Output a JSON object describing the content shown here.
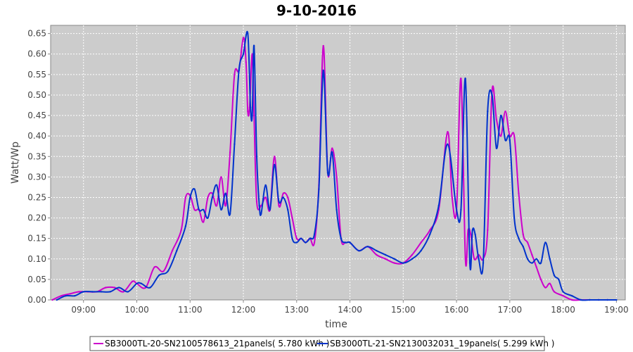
{
  "chart_data": {
    "type": "line",
    "title": "9-10-2016",
    "xlabel": "time",
    "ylabel": "Watt/Wp",
    "xlim": [
      "08:23",
      "19:10"
    ],
    "ylim": [
      0,
      0.67
    ],
    "x_ticks": [
      "09:00",
      "10:00",
      "11:00",
      "12:00",
      "13:00",
      "14:00",
      "15:00",
      "16:00",
      "17:00",
      "18:00",
      "19:00"
    ],
    "y_ticks": [
      "0.00",
      "0.05",
      "0.10",
      "0.15",
      "0.20",
      "0.25",
      "0.30",
      "0.35",
      "0.40",
      "0.45",
      "0.50",
      "0.55",
      "0.60",
      "0.65"
    ],
    "grid": true,
    "legend_position": "bottom",
    "plot_background": "#cccccc",
    "series": [
      {
        "name": "SB3000TL-20-SN2100578613_21panels( 5.780 kWh )",
        "color": "#cc00cc",
        "x": [
          "08:25",
          "08:35",
          "08:45",
          "08:55",
          "09:05",
          "09:15",
          "09:25",
          "09:35",
          "09:45",
          "09:55",
          "10:00",
          "10:10",
          "10:20",
          "10:30",
          "10:40",
          "10:50",
          "10:55",
          "11:00",
          "11:05",
          "11:10",
          "11:15",
          "11:20",
          "11:25",
          "11:30",
          "11:35",
          "11:40",
          "11:45",
          "11:50",
          "11:55",
          "12:00",
          "12:03",
          "12:05",
          "12:07",
          "12:10",
          "12:12",
          "12:15",
          "12:20",
          "12:25",
          "12:30",
          "12:35",
          "12:40",
          "12:45",
          "12:50",
          "12:55",
          "13:00",
          "13:05",
          "13:10",
          "13:15",
          "13:20",
          "13:25",
          "13:30",
          "13:35",
          "13:40",
          "13:45",
          "13:50",
          "13:55",
          "14:00",
          "14:10",
          "14:20",
          "14:30",
          "14:40",
          "14:50",
          "15:00",
          "15:10",
          "15:20",
          "15:30",
          "15:40",
          "15:50",
          "15:55",
          "16:00",
          "16:05",
          "16:10",
          "16:13",
          "16:16",
          "16:20",
          "16:25",
          "16:30",
          "16:35",
          "16:40",
          "16:45",
          "16:50",
          "16:55",
          "17:00",
          "17:05",
          "17:10",
          "17:15",
          "17:20",
          "17:25",
          "17:30",
          "17:35",
          "17:40",
          "17:45",
          "17:50",
          "18:00",
          "18:10",
          "18:20",
          "18:30",
          "18:40",
          "18:50"
        ],
        "y": [
          0.0,
          0.01,
          0.015,
          0.02,
          0.02,
          0.02,
          0.03,
          0.03,
          0.02,
          0.045,
          0.04,
          0.03,
          0.08,
          0.07,
          0.12,
          0.17,
          0.25,
          0.255,
          0.22,
          0.22,
          0.19,
          0.25,
          0.26,
          0.23,
          0.3,
          0.23,
          0.36,
          0.55,
          0.56,
          0.64,
          0.58,
          0.46,
          0.47,
          0.6,
          0.45,
          0.24,
          0.23,
          0.25,
          0.22,
          0.35,
          0.23,
          0.26,
          0.25,
          0.2,
          0.15,
          0.15,
          0.14,
          0.15,
          0.14,
          0.28,
          0.62,
          0.31,
          0.37,
          0.3,
          0.15,
          0.14,
          0.14,
          0.12,
          0.13,
          0.11,
          0.1,
          0.09,
          0.09,
          0.11,
          0.14,
          0.17,
          0.22,
          0.41,
          0.25,
          0.22,
          0.54,
          0.1,
          0.17,
          0.16,
          0.1,
          0.11,
          0.1,
          0.17,
          0.51,
          0.44,
          0.4,
          0.46,
          0.4,
          0.4,
          0.26,
          0.16,
          0.14,
          0.11,
          0.08,
          0.05,
          0.03,
          0.04,
          0.02,
          0.01,
          0.0,
          0.0,
          0.0,
          0.0,
          0.0
        ]
      },
      {
        "name": "SB3000TL-21-SN2130032031_19panels( 5.299 kWh )",
        "color": "#0033cc",
        "x": [
          "08:30",
          "08:40",
          "08:50",
          "09:00",
          "09:10",
          "09:20",
          "09:30",
          "09:40",
          "09:50",
          "10:00",
          "10:05",
          "10:15",
          "10:25",
          "10:35",
          "10:45",
          "10:55",
          "11:00",
          "11:05",
          "11:10",
          "11:15",
          "11:20",
          "11:25",
          "11:30",
          "11:35",
          "11:40",
          "11:45",
          "11:50",
          "11:55",
          "12:00",
          "12:05",
          "12:08",
          "12:10",
          "12:12",
          "12:15",
          "12:18",
          "12:20",
          "12:25",
          "12:30",
          "12:35",
          "12:40",
          "12:45",
          "12:50",
          "12:55",
          "13:00",
          "13:05",
          "13:10",
          "13:15",
          "13:20",
          "13:25",
          "13:30",
          "13:35",
          "13:40",
          "13:45",
          "13:50",
          "13:55",
          "14:00",
          "14:10",
          "14:20",
          "14:30",
          "14:40",
          "14:50",
          "15:00",
          "15:10",
          "15:20",
          "15:30",
          "15:40",
          "15:50",
          "16:00",
          "16:05",
          "16:10",
          "16:15",
          "16:18",
          "16:21",
          "16:25",
          "16:30",
          "16:35",
          "16:40",
          "16:45",
          "16:50",
          "16:55",
          "17:00",
          "17:05",
          "17:10",
          "17:15",
          "17:20",
          "17:25",
          "17:30",
          "17:35",
          "17:40",
          "17:45",
          "17:50",
          "17:55",
          "18:00",
          "18:10",
          "18:20",
          "18:30",
          "18:40",
          "18:50",
          "19:00"
        ],
        "y": [
          0.0,
          0.01,
          0.01,
          0.02,
          0.02,
          0.02,
          0.02,
          0.03,
          0.02,
          0.04,
          0.04,
          0.03,
          0.06,
          0.07,
          0.12,
          0.18,
          0.25,
          0.27,
          0.22,
          0.22,
          0.2,
          0.25,
          0.28,
          0.22,
          0.26,
          0.21,
          0.38,
          0.56,
          0.6,
          0.65,
          0.47,
          0.45,
          0.62,
          0.35,
          0.23,
          0.21,
          0.28,
          0.22,
          0.33,
          0.24,
          0.25,
          0.22,
          0.15,
          0.14,
          0.15,
          0.14,
          0.15,
          0.16,
          0.27,
          0.56,
          0.31,
          0.36,
          0.22,
          0.15,
          0.14,
          0.14,
          0.12,
          0.13,
          0.12,
          0.11,
          0.1,
          0.09,
          0.1,
          0.12,
          0.16,
          0.23,
          0.38,
          0.22,
          0.22,
          0.54,
          0.09,
          0.17,
          0.16,
          0.1,
          0.09,
          0.46,
          0.5,
          0.37,
          0.45,
          0.39,
          0.39,
          0.2,
          0.15,
          0.13,
          0.1,
          0.09,
          0.1,
          0.09,
          0.14,
          0.1,
          0.06,
          0.05,
          0.02,
          0.01,
          0.0,
          0.0,
          0.0,
          0.0,
          0.0
        ]
      }
    ]
  }
}
